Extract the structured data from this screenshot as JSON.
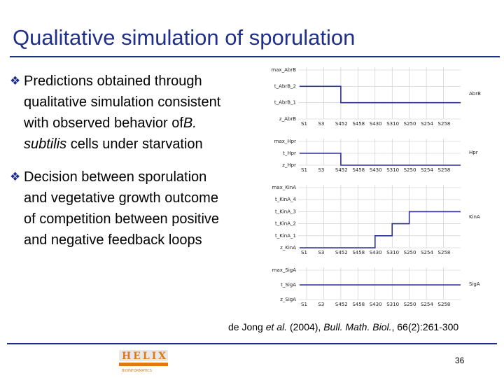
{
  "slide": {
    "title": "Qualitative simulation of sporulation",
    "bullets": [
      {
        "lines": [
          "Predictions obtained through",
          "qualitative simulation consistent",
          [
            "with observed behavior of",
            "B."
          ],
          [
            "subtilis",
            " cells under starvation"
          ]
        ]
      },
      {
        "lines": [
          "Decision between sporulation",
          "and vegetative growth outcome",
          "of competition between positive",
          "and negative feedback loops"
        ]
      }
    ],
    "citation": {
      "authors": "de Jong ",
      "etal": "et al.",
      "year": " (2004), ",
      "journal": "Bull. Math. Biol.",
      "volume": ", 66(2):261-300"
    },
    "page_number": "36",
    "logo": {
      "text": "HELIX",
      "subtext": "BIOINFORMATICS"
    }
  },
  "plots": {
    "states": [
      "S1",
      "S3",
      "S452",
      "S458",
      "S430",
      "S310",
      "S250",
      "S254",
      "S258"
    ],
    "panels": [
      {
        "variable": "AbrB",
        "levels": [
          "max_AbrB",
          "t_AbrB_2",
          "t_AbrB_1",
          "z_AbrB"
        ],
        "trace": [
          2,
          2,
          1,
          1,
          1,
          1,
          1,
          1,
          1
        ]
      },
      {
        "variable": "Hpr",
        "levels": [
          "max_Hpr",
          "t_Hpr",
          "z_Hpr"
        ],
        "trace": [
          1,
          1,
          0,
          0,
          0,
          0,
          0,
          0,
          0
        ]
      },
      {
        "variable": "KinA",
        "levels": [
          "max_KinA",
          "t_KinA_4",
          "t_KinA_3",
          "t_KinA_2",
          "t_KinA_1",
          "z_KinA"
        ],
        "trace": [
          0,
          0,
          0,
          0,
          1,
          2,
          3,
          3,
          3
        ]
      },
      {
        "variable": "SigA",
        "levels": [
          "max_SigA",
          "t_SigA",
          "z_SigA"
        ],
        "trace": [
          1,
          1,
          1,
          1,
          1,
          1,
          1,
          1,
          1
        ]
      }
    ]
  },
  "colors": {
    "title": "#1f2f8a",
    "trace": "#2b2f9a",
    "grid": "#c8c8c8",
    "logo": "#e07a10"
  }
}
